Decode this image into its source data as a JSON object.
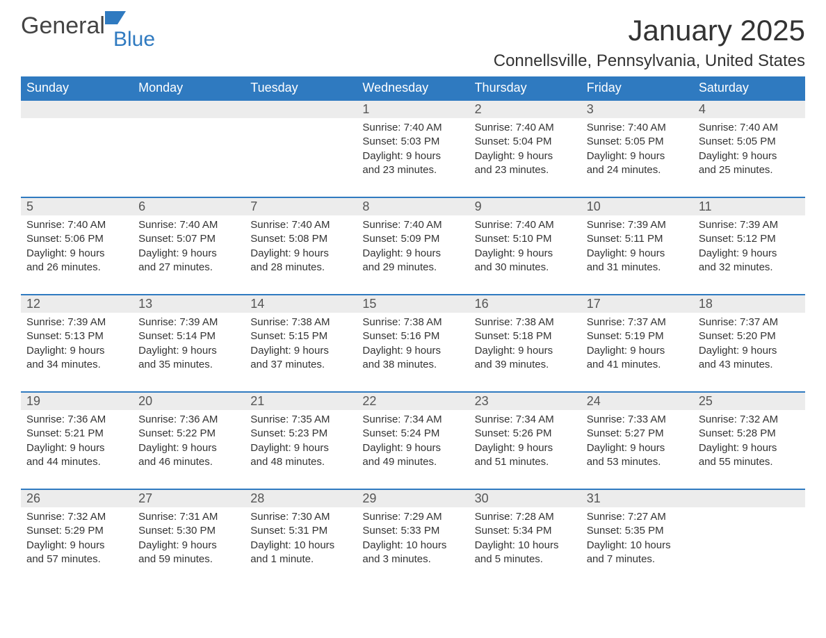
{
  "branding": {
    "word1": "General",
    "word2": "Blue",
    "color_primary": "#2f7ac0",
    "color_text": "#444444"
  },
  "title": "January 2025",
  "subtitle": "Connellsville, Pennsylvania, United States",
  "title_fontsize": 42,
  "subtitle_fontsize": 24,
  "colors": {
    "header_bg": "#2f7ac0",
    "header_text": "#ffffff",
    "daynum_bg": "#ececec",
    "daynum_border": "#2f7ac0",
    "body_text": "#333333",
    "page_bg": "#ffffff"
  },
  "weekdays": [
    "Sunday",
    "Monday",
    "Tuesday",
    "Wednesday",
    "Thursday",
    "Friday",
    "Saturday"
  ],
  "weeks": [
    [
      null,
      null,
      null,
      {
        "n": "1",
        "sunrise": "Sunrise: 7:40 AM",
        "sunset": "Sunset: 5:03 PM",
        "day1": "Daylight: 9 hours",
        "day2": "and 23 minutes."
      },
      {
        "n": "2",
        "sunrise": "Sunrise: 7:40 AM",
        "sunset": "Sunset: 5:04 PM",
        "day1": "Daylight: 9 hours",
        "day2": "and 23 minutes."
      },
      {
        "n": "3",
        "sunrise": "Sunrise: 7:40 AM",
        "sunset": "Sunset: 5:05 PM",
        "day1": "Daylight: 9 hours",
        "day2": "and 24 minutes."
      },
      {
        "n": "4",
        "sunrise": "Sunrise: 7:40 AM",
        "sunset": "Sunset: 5:05 PM",
        "day1": "Daylight: 9 hours",
        "day2": "and 25 minutes."
      }
    ],
    [
      {
        "n": "5",
        "sunrise": "Sunrise: 7:40 AM",
        "sunset": "Sunset: 5:06 PM",
        "day1": "Daylight: 9 hours",
        "day2": "and 26 minutes."
      },
      {
        "n": "6",
        "sunrise": "Sunrise: 7:40 AM",
        "sunset": "Sunset: 5:07 PM",
        "day1": "Daylight: 9 hours",
        "day2": "and 27 minutes."
      },
      {
        "n": "7",
        "sunrise": "Sunrise: 7:40 AM",
        "sunset": "Sunset: 5:08 PM",
        "day1": "Daylight: 9 hours",
        "day2": "and 28 minutes."
      },
      {
        "n": "8",
        "sunrise": "Sunrise: 7:40 AM",
        "sunset": "Sunset: 5:09 PM",
        "day1": "Daylight: 9 hours",
        "day2": "and 29 minutes."
      },
      {
        "n": "9",
        "sunrise": "Sunrise: 7:40 AM",
        "sunset": "Sunset: 5:10 PM",
        "day1": "Daylight: 9 hours",
        "day2": "and 30 minutes."
      },
      {
        "n": "10",
        "sunrise": "Sunrise: 7:39 AM",
        "sunset": "Sunset: 5:11 PM",
        "day1": "Daylight: 9 hours",
        "day2": "and 31 minutes."
      },
      {
        "n": "11",
        "sunrise": "Sunrise: 7:39 AM",
        "sunset": "Sunset: 5:12 PM",
        "day1": "Daylight: 9 hours",
        "day2": "and 32 minutes."
      }
    ],
    [
      {
        "n": "12",
        "sunrise": "Sunrise: 7:39 AM",
        "sunset": "Sunset: 5:13 PM",
        "day1": "Daylight: 9 hours",
        "day2": "and 34 minutes."
      },
      {
        "n": "13",
        "sunrise": "Sunrise: 7:39 AM",
        "sunset": "Sunset: 5:14 PM",
        "day1": "Daylight: 9 hours",
        "day2": "and 35 minutes."
      },
      {
        "n": "14",
        "sunrise": "Sunrise: 7:38 AM",
        "sunset": "Sunset: 5:15 PM",
        "day1": "Daylight: 9 hours",
        "day2": "and 37 minutes."
      },
      {
        "n": "15",
        "sunrise": "Sunrise: 7:38 AM",
        "sunset": "Sunset: 5:16 PM",
        "day1": "Daylight: 9 hours",
        "day2": "and 38 minutes."
      },
      {
        "n": "16",
        "sunrise": "Sunrise: 7:38 AM",
        "sunset": "Sunset: 5:18 PM",
        "day1": "Daylight: 9 hours",
        "day2": "and 39 minutes."
      },
      {
        "n": "17",
        "sunrise": "Sunrise: 7:37 AM",
        "sunset": "Sunset: 5:19 PM",
        "day1": "Daylight: 9 hours",
        "day2": "and 41 minutes."
      },
      {
        "n": "18",
        "sunrise": "Sunrise: 7:37 AM",
        "sunset": "Sunset: 5:20 PM",
        "day1": "Daylight: 9 hours",
        "day2": "and 43 minutes."
      }
    ],
    [
      {
        "n": "19",
        "sunrise": "Sunrise: 7:36 AM",
        "sunset": "Sunset: 5:21 PM",
        "day1": "Daylight: 9 hours",
        "day2": "and 44 minutes."
      },
      {
        "n": "20",
        "sunrise": "Sunrise: 7:36 AM",
        "sunset": "Sunset: 5:22 PM",
        "day1": "Daylight: 9 hours",
        "day2": "and 46 minutes."
      },
      {
        "n": "21",
        "sunrise": "Sunrise: 7:35 AM",
        "sunset": "Sunset: 5:23 PM",
        "day1": "Daylight: 9 hours",
        "day2": "and 48 minutes."
      },
      {
        "n": "22",
        "sunrise": "Sunrise: 7:34 AM",
        "sunset": "Sunset: 5:24 PM",
        "day1": "Daylight: 9 hours",
        "day2": "and 49 minutes."
      },
      {
        "n": "23",
        "sunrise": "Sunrise: 7:34 AM",
        "sunset": "Sunset: 5:26 PM",
        "day1": "Daylight: 9 hours",
        "day2": "and 51 minutes."
      },
      {
        "n": "24",
        "sunrise": "Sunrise: 7:33 AM",
        "sunset": "Sunset: 5:27 PM",
        "day1": "Daylight: 9 hours",
        "day2": "and 53 minutes."
      },
      {
        "n": "25",
        "sunrise": "Sunrise: 7:32 AM",
        "sunset": "Sunset: 5:28 PM",
        "day1": "Daylight: 9 hours",
        "day2": "and 55 minutes."
      }
    ],
    [
      {
        "n": "26",
        "sunrise": "Sunrise: 7:32 AM",
        "sunset": "Sunset: 5:29 PM",
        "day1": "Daylight: 9 hours",
        "day2": "and 57 minutes."
      },
      {
        "n": "27",
        "sunrise": "Sunrise: 7:31 AM",
        "sunset": "Sunset: 5:30 PM",
        "day1": "Daylight: 9 hours",
        "day2": "and 59 minutes."
      },
      {
        "n": "28",
        "sunrise": "Sunrise: 7:30 AM",
        "sunset": "Sunset: 5:31 PM",
        "day1": "Daylight: 10 hours",
        "day2": "and 1 minute."
      },
      {
        "n": "29",
        "sunrise": "Sunrise: 7:29 AM",
        "sunset": "Sunset: 5:33 PM",
        "day1": "Daylight: 10 hours",
        "day2": "and 3 minutes."
      },
      {
        "n": "30",
        "sunrise": "Sunrise: 7:28 AM",
        "sunset": "Sunset: 5:34 PM",
        "day1": "Daylight: 10 hours",
        "day2": "and 5 minutes."
      },
      {
        "n": "31",
        "sunrise": "Sunrise: 7:27 AM",
        "sunset": "Sunset: 5:35 PM",
        "day1": "Daylight: 10 hours",
        "day2": "and 7 minutes."
      },
      null
    ]
  ]
}
